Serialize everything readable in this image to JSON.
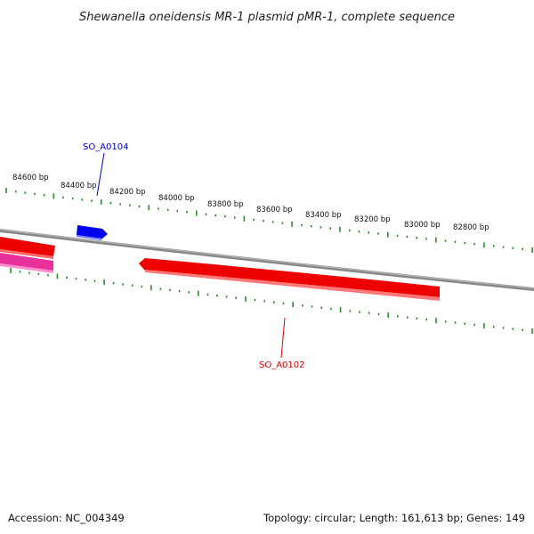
{
  "title": "Shewanella oneidensis MR-1 plasmid pMR-1, complete sequence",
  "footer": {
    "accession": "Accession: NC_004349",
    "summary": "Topology: circular; Length: 161,613 bp; Genes: 149"
  },
  "ruler_labels": [
    "84600 bp",
    "84400 bp",
    "84200 bp",
    "84000 bp",
    "83800 bp",
    "83600 bp",
    "83400 bp",
    "83200 bp",
    "83000 bp",
    "82800 bp"
  ],
  "genes": [
    {
      "name": "SO_A0104",
      "color": "#0000cc",
      "strand": "forward"
    },
    {
      "name": "SO_A0102",
      "color": "#dd0000",
      "strand": "reverse"
    }
  ],
  "colors": {
    "backbone": "#888888",
    "ticks": "#2e8b2e",
    "gene_forward": "#0000ee",
    "gene_reverse": "#ee0000",
    "gene_magenta": "#e8309a"
  }
}
